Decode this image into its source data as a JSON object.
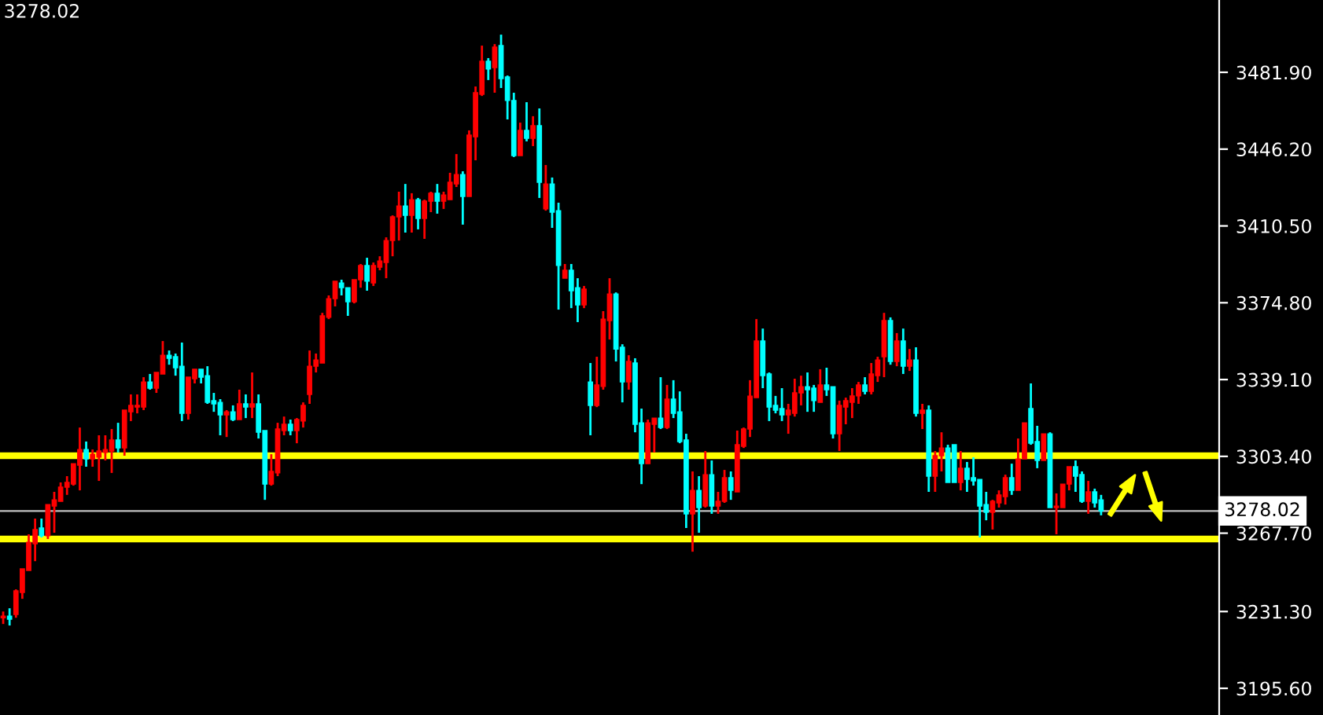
{
  "chart_data": {
    "type": "candlestick",
    "categories": [
      null,
      null,
      null,
      null,
      null,
      null,
      null,
      null,
      null,
      null,
      null,
      null,
      null,
      null,
      null,
      null,
      null,
      null,
      null,
      null,
      null,
      null,
      null,
      null,
      null,
      null,
      null,
      null,
      null,
      null,
      null,
      null,
      null,
      null,
      null,
      null,
      null,
      null,
      null,
      null,
      null,
      null,
      null,
      null,
      null,
      null,
      null,
      null,
      null,
      null,
      null,
      null,
      null,
      null,
      null,
      null,
      null,
      null,
      null,
      null,
      null,
      null,
      null,
      null,
      null,
      null,
      null,
      null,
      null,
      null,
      null,
      null,
      null,
      null,
      null,
      null,
      null,
      null,
      null,
      null,
      null,
      null,
      null,
      null,
      null,
      null,
      null,
      null,
      null,
      null,
      null,
      null,
      null,
      null,
      null,
      null,
      null,
      null,
      null,
      null,
      null,
      null,
      null,
      null,
      null,
      null,
      null,
      null,
      null,
      null,
      null,
      null,
      null,
      null,
      null,
      null,
      null,
      null,
      null,
      null,
      null,
      null,
      null,
      null,
      null,
      null,
      null,
      null,
      null,
      null,
      null,
      null,
      null,
      null,
      null,
      null,
      null,
      null,
      null,
      null,
      null,
      null,
      null,
      null,
      null,
      null,
      null,
      null,
      null,
      null,
      null,
      null,
      null,
      null,
      null,
      null,
      null,
      null,
      null,
      null,
      null,
      null,
      null,
      null,
      null,
      null,
      null,
      null,
      null,
      null,
      null,
      null,
      null,
      null,
      null,
      null,
      null,
      null,
      null,
      null,
      null,
      null,
      null,
      null,
      null,
      null,
      null,
      null,
      null,
      null,
      null
    ],
    "ohlc": [
      [
        3228.4,
        3231.3,
        3225.5,
        3229.1
      ],
      [
        3229.1,
        3232.8,
        3224.8,
        3227.7
      ],
      [
        3229.9,
        3241.6,
        3228.4,
        3240.9
      ],
      [
        3240.1,
        3251.1,
        3237.2,
        3251.1
      ],
      [
        3250.4,
        3267.2,
        3250.4,
        3263.5
      ],
      [
        3262.8,
        3274.5,
        3254.7,
        3269.4
      ],
      [
        3270.1,
        3274.5,
        3265.7,
        3266.5
      ],
      [
        3266.5,
        3281.0,
        3265.0,
        3281.0
      ],
      [
        3280.3,
        3286.9,
        3267.9,
        3283.2
      ],
      [
        3282.5,
        3291.3,
        3282.5,
        3289.1
      ],
      [
        3289.1,
        3294.2,
        3285.5,
        3291.3
      ],
      [
        3290.5,
        3300.0,
        3289.8,
        3300.0
      ],
      [
        3299.3,
        3316.8,
        3287.6,
        3306.6
      ],
      [
        3306.6,
        3310.3,
        3298.6,
        3302.2
      ],
      [
        3302.2,
        3306.6,
        3298.6,
        3304.4
      ],
      [
        3303.0,
        3313.2,
        3292.0,
        3305.9
      ],
      [
        3305.2,
        3313.2,
        3301.5,
        3306.6
      ],
      [
        3305.9,
        3316.1,
        3295.7,
        3311.0
      ],
      [
        3311.0,
        3319.0,
        3305.2,
        3307.3
      ],
      [
        3307.3,
        3324.9,
        3303.7,
        3324.9
      ],
      [
        3324.1,
        3332.2,
        3319.8,
        3327.1
      ],
      [
        3326.3,
        3332.2,
        3323.4,
        3327.1
      ],
      [
        3326.3,
        3340.2,
        3324.9,
        3338.0
      ],
      [
        3338.0,
        3341.7,
        3334.4,
        3335.1
      ],
      [
        3335.1,
        3342.4,
        3332.9,
        3342.4
      ],
      [
        3341.7,
        3357.0,
        3341.7,
        3350.4
      ],
      [
        3350.4,
        3352.6,
        3346.0,
        3349.0
      ],
      [
        3349.7,
        3351.2,
        3340.9,
        3344.6
      ],
      [
        3345.3,
        3356.3,
        3319.8,
        3323.4
      ],
      [
        3323.4,
        3340.2,
        3320.5,
        3340.2
      ],
      [
        3339.5,
        3343.9,
        3337.3,
        3343.9
      ],
      [
        3343.9,
        3343.9,
        3337.3,
        3340.2
      ],
      [
        3340.9,
        3345.3,
        3327.8,
        3328.5
      ],
      [
        3329.3,
        3332.9,
        3324.1,
        3327.8
      ],
      [
        3328.5,
        3330.0,
        3313.2,
        3322.7
      ],
      [
        3322.7,
        3324.9,
        3312.4,
        3324.1
      ],
      [
        3324.1,
        3327.1,
        3319.8,
        3320.5
      ],
      [
        3320.5,
        3334.4,
        3320.5,
        3327.8
      ],
      [
        3327.8,
        3332.2,
        3321.2,
        3326.3
      ],
      [
        3326.3,
        3342.4,
        3321.2,
        3327.8
      ],
      [
        3327.8,
        3332.2,
        3311.7,
        3314.6
      ],
      [
        3315.4,
        3315.4,
        3283.2,
        3290.5
      ],
      [
        3290.5,
        3304.4,
        3289.8,
        3296.4
      ],
      [
        3295.7,
        3319.0,
        3294.2,
        3316.1
      ],
      [
        3315.4,
        3321.9,
        3313.2,
        3318.3
      ],
      [
        3318.3,
        3320.5,
        3313.2,
        3315.4
      ],
      [
        3315.4,
        3321.2,
        3309.5,
        3320.5
      ],
      [
        3319.8,
        3328.5,
        3316.8,
        3327.1
      ],
      [
        3332.2,
        3352.6,
        3327.8,
        3345.3
      ],
      [
        3345.3,
        3351.2,
        3342.4,
        3348.2
      ],
      [
        3346.8,
        3370.1,
        3346.8,
        3368.7
      ],
      [
        3368.0,
        3378.2,
        3367.2,
        3376.7
      ],
      [
        3376.7,
        3384.8,
        3373.1,
        3384.8
      ],
      [
        3384.0,
        3385.5,
        3378.2,
        3381.8
      ],
      [
        3381.8,
        3381.8,
        3368.7,
        3375.3
      ],
      [
        3375.3,
        3385.5,
        3374.5,
        3385.5
      ],
      [
        3385.5,
        3392.8,
        3381.8,
        3392.1
      ],
      [
        3392.1,
        3395.7,
        3380.4,
        3384.8
      ],
      [
        3384.0,
        3393.5,
        3382.6,
        3392.1
      ],
      [
        3391.3,
        3396.4,
        3389.9,
        3394.2
      ],
      [
        3393.5,
        3405.2,
        3386.2,
        3403.7
      ],
      [
        3403.7,
        3415.4,
        3396.4,
        3414.7
      ],
      [
        3414.7,
        3426.4,
        3403.7,
        3419.8
      ],
      [
        3419.8,
        3430.0,
        3407.4,
        3415.4
      ],
      [
        3415.4,
        3425.7,
        3407.4,
        3422.7
      ],
      [
        3422.7,
        3423.5,
        3408.9,
        3414.0
      ],
      [
        3414.0,
        3422.7,
        3404.5,
        3422.0
      ],
      [
        3422.0,
        3426.4,
        3416.9,
        3425.7
      ],
      [
        3425.7,
        3430.0,
        3416.2,
        3422.0
      ],
      [
        3422.0,
        3426.4,
        3418.4,
        3424.9
      ],
      [
        3422.7,
        3435.2,
        3422.7,
        3430.8
      ],
      [
        3430.0,
        3443.9,
        3428.6,
        3434.4
      ],
      [
        3434.4,
        3435.9,
        3411.1,
        3424.2
      ],
      [
        3424.2,
        3454.9,
        3424.2,
        3452.7
      ],
      [
        3451.9,
        3475.3,
        3441.0,
        3472.4
      ],
      [
        3471.7,
        3494.3,
        3470.9,
        3487.0
      ],
      [
        3487.0,
        3488.5,
        3478.3,
        3483.4
      ],
      [
        3484.1,
        3495.0,
        3472.4,
        3493.6
      ],
      [
        3494.3,
        3499.4,
        3474.6,
        3479.0
      ],
      [
        3479.7,
        3480.4,
        3460.0,
        3468.8
      ],
      [
        3468.8,
        3472.4,
        3442.5,
        3443.2
      ],
      [
        3443.2,
        3458.5,
        3443.2,
        3454.9
      ],
      [
        3454.9,
        3468.0,
        3449.8,
        3451.2
      ],
      [
        3451.2,
        3461.5,
        3447.6,
        3457.1
      ],
      [
        3457.1,
        3465.1,
        3423.5,
        3430.8
      ],
      [
        3418.4,
        3438.8,
        3417.6,
        3430.0
      ],
      [
        3430.0,
        3433.0,
        3409.6,
        3416.9
      ],
      [
        3417.6,
        3421.3,
        3371.6,
        3392.1
      ],
      [
        3386.2,
        3392.8,
        3386.2,
        3389.9
      ],
      [
        3389.9,
        3392.8,
        3372.3,
        3380.4
      ],
      [
        3381.8,
        3386.2,
        3365.8,
        3373.8
      ],
      [
        3373.8,
        3382.6,
        3372.3,
        3381.1
      ],
      [
        3338.0,
        3346.8,
        3313.2,
        3327.1
      ],
      [
        3327.1,
        3349.7,
        3326.3,
        3336.6
      ],
      [
        3335.9,
        3370.9,
        3334.4,
        3367.2
      ],
      [
        3366.5,
        3386.2,
        3357.7,
        3378.9
      ],
      [
        3378.9,
        3379.6,
        3347.5,
        3353.3
      ],
      [
        3354.1,
        3355.5,
        3328.5,
        3338.0
      ],
      [
        3338.0,
        3350.4,
        3334.4,
        3347.5
      ],
      [
        3346.8,
        3349.0,
        3314.6,
        3318.3
      ],
      [
        3319.0,
        3325.6,
        3290.5,
        3300.0
      ],
      [
        3300.0,
        3320.5,
        3300.0,
        3319.0
      ],
      [
        3318.3,
        3321.2,
        3305.2,
        3321.2
      ],
      [
        3321.2,
        3340.2,
        3316.1,
        3316.8
      ],
      [
        3316.8,
        3336.6,
        3316.1,
        3330.0
      ],
      [
        3330.0,
        3338.8,
        3321.2,
        3323.4
      ],
      [
        3324.1,
        3333.6,
        3309.5,
        3310.3
      ],
      [
        3311.0,
        3313.9,
        3270.1,
        3276.7
      ],
      [
        3276.7,
        3296.4,
        3259.1,
        3287.6
      ],
      [
        3287.6,
        3294.2,
        3267.9,
        3279.6
      ],
      [
        3280.3,
        3305.9,
        3279.6,
        3294.9
      ],
      [
        3294.9,
        3301.5,
        3276.7,
        3280.3
      ],
      [
        3280.3,
        3286.9,
        3276.7,
        3282.5
      ],
      [
        3282.5,
        3297.1,
        3281.8,
        3293.5
      ],
      [
        3293.5,
        3296.4,
        3283.2,
        3287.6
      ],
      [
        3286.9,
        3315.4,
        3286.9,
        3308.8
      ],
      [
        3308.1,
        3316.8,
        3307.3,
        3316.1
      ],
      [
        3316.1,
        3338.8,
        3312.4,
        3331.4
      ],
      [
        3330.7,
        3367.2,
        3330.7,
        3357.0
      ],
      [
        3357.0,
        3362.8,
        3335.1,
        3340.9
      ],
      [
        3341.7,
        3342.4,
        3319.8,
        3326.3
      ],
      [
        3327.1,
        3331.5,
        3323.4,
        3324.9
      ],
      [
        3325.6,
        3335.1,
        3319.8,
        3322.7
      ],
      [
        3322.7,
        3327.8,
        3313.9,
        3324.9
      ],
      [
        3323.4,
        3339.5,
        3321.9,
        3332.9
      ],
      [
        3332.9,
        3340.9,
        3327.1,
        3335.8
      ],
      [
        3335.8,
        3342.4,
        3324.1,
        3334.4
      ],
      [
        3335.1,
        3336.6,
        3324.1,
        3329.3
      ],
      [
        3328.5,
        3343.9,
        3328.5,
        3336.6
      ],
      [
        3336.6,
        3344.6,
        3331.5,
        3334.4
      ],
      [
        3335.8,
        3335.8,
        3311.7,
        3313.9
      ],
      [
        3313.9,
        3329.3,
        3305.9,
        3327.1
      ],
      [
        3326.3,
        3330.7,
        3318.3,
        3329.3
      ],
      [
        3328.5,
        3335.1,
        3321.2,
        3331.5
      ],
      [
        3331.5,
        3338.0,
        3327.8,
        3336.6
      ],
      [
        3336.6,
        3340.2,
        3332.2,
        3333.6
      ],
      [
        3333.6,
        3346.8,
        3332.2,
        3341.7
      ],
      [
        3340.9,
        3349.7,
        3338.0,
        3348.2
      ],
      [
        3349.7,
        3370.1,
        3340.2,
        3366.5
      ],
      [
        3366.5,
        3368.0,
        3346.0,
        3347.5
      ],
      [
        3347.5,
        3360.7,
        3345.3,
        3357.0
      ],
      [
        3357.0,
        3362.8,
        3341.7,
        3345.3
      ],
      [
        3345.3,
        3353.3,
        3343.1,
        3348.2
      ],
      [
        3348.2,
        3354.1,
        3321.9,
        3323.4
      ],
      [
        3323.4,
        3327.8,
        3316.1,
        3324.9
      ],
      [
        3324.9,
        3327.1,
        3286.9,
        3294.2
      ],
      [
        3294.2,
        3305.9,
        3286.9,
        3303.7
      ],
      [
        3303.7,
        3314.6,
        3296.4,
        3307.3
      ],
      [
        3307.3,
        3308.8,
        3291.3,
        3291.3
      ],
      [
        3308.8,
        3308.8,
        3291.3,
        3291.3
      ],
      [
        3291.3,
        3305.9,
        3287.6,
        3297.9
      ],
      [
        3297.9,
        3300.8,
        3286.9,
        3292.7
      ],
      [
        3293.5,
        3303.0,
        3289.8,
        3292.0
      ],
      [
        3292.7,
        3292.7,
        3265.7,
        3280.3
      ],
      [
        3281.0,
        3286.9,
        3273.7,
        3277.4
      ],
      [
        3277.4,
        3283.2,
        3269.4,
        3282.5
      ],
      [
        3281.8,
        3287.6,
        3279.6,
        3285.5
      ],
      [
        3284.7,
        3294.9,
        3281.0,
        3293.5
      ],
      [
        3293.5,
        3300.0,
        3285.5,
        3287.6
      ],
      [
        3287.6,
        3311.7,
        3287.6,
        3302.2
      ],
      [
        3302.2,
        3319.0,
        3302.2,
        3319.0
      ],
      [
        3325.6,
        3337.3,
        3308.8,
        3309.5
      ],
      [
        3310.3,
        3317.6,
        3297.9,
        3301.5
      ],
      [
        3301.5,
        3313.9,
        3301.5,
        3313.9
      ],
      [
        3313.9,
        3314.6,
        3279.6,
        3279.6
      ],
      [
        3279.6,
        3286.2,
        3267.2,
        3280.3
      ],
      [
        3279.6,
        3290.5,
        3279.6,
        3290.5
      ],
      [
        3290.5,
        3298.6,
        3287.6,
        3298.6
      ],
      [
        3298.6,
        3301.5,
        3286.9,
        3294.2
      ],
      [
        3295.0,
        3296.4,
        3281.8,
        3282.5
      ],
      [
        3282.5,
        3292.0,
        3276.7,
        3286.9
      ],
      [
        3286.9,
        3288.4,
        3279.6,
        3281.8
      ],
      [
        3283.2,
        3285.5,
        3276.0,
        3278.0
      ],
      null,
      null,
      null,
      null,
      null,
      null,
      null,
      null,
      null,
      null,
      null,
      null,
      null,
      null,
      null,
      null,
      null,
      null
    ],
    "colors": [
      "#ff0000",
      "#00ffff",
      "#ff0000",
      "#ff0000",
      "#ff0000",
      "#ff0000",
      "#00ffff",
      "#ff0000",
      "#ff0000",
      "#ff0000",
      "#ff0000",
      "#ff0000",
      "#ff0000",
      "#00ffff",
      "#ff0000",
      "#ff0000",
      "#ff0000",
      "#ff0000",
      "#00ffff",
      "#ff0000",
      "#ff0000",
      "#ff0000",
      "#ff0000",
      "#00ffff",
      "#ff0000",
      "#ff0000",
      "#00ffff",
      "#00ffff",
      "#00ffff",
      "#ff0000",
      "#ff0000",
      "#00ffff",
      "#00ffff",
      "#00ffff",
      "#00ffff",
      "#ff0000",
      "#00ffff",
      "#ff0000",
      "#00ffff",
      "#ff0000",
      "#00ffff",
      "#00ffff",
      "#ff0000",
      "#ff0000",
      "#ff0000",
      "#00ffff",
      "#ff0000",
      "#ff0000",
      "#ff0000",
      "#ff0000",
      "#ff0000",
      "#ff0000",
      "#ff0000",
      "#00ffff",
      "#00ffff",
      "#ff0000",
      "#ff0000",
      "#00ffff",
      "#ff0000",
      "#ff0000",
      "#ff0000",
      "#ff0000",
      "#ff0000",
      "#00ffff",
      "#ff0000",
      "#00ffff",
      "#ff0000",
      "#ff0000",
      "#00ffff",
      "#ff0000",
      "#ff0000",
      "#ff0000",
      "#00ffff",
      "#ff0000",
      "#ff0000",
      "#ff0000",
      "#00ffff",
      "#ff0000",
      "#00ffff",
      "#00ffff",
      "#00ffff",
      "#ff0000",
      "#00ffff",
      "#ff0000",
      "#00ffff",
      "#ff0000",
      "#00ffff",
      "#00ffff",
      "#ff0000",
      "#00ffff",
      "#00ffff",
      "#ff0000",
      "#00ffff",
      "#ff0000",
      "#ff0000",
      "#ff0000",
      "#00ffff",
      "#00ffff",
      "#ff0000",
      "#00ffff",
      "#00ffff",
      "#ff0000",
      "#ff0000",
      "#00ffff",
      "#ff0000",
      "#00ffff",
      "#00ffff",
      "#00ffff",
      "#ff0000",
      "#00ffff",
      "#ff0000",
      "#00ffff",
      "#ff0000",
      "#ff0000",
      "#00ffff",
      "#ff0000",
      "#ff0000",
      "#ff0000",
      "#ff0000",
      "#00ffff",
      "#00ffff",
      "#00ffff",
      "#00ffff",
      "#ff0000",
      "#ff0000",
      "#ff0000",
      "#00ffff",
      "#00ffff",
      "#ff0000",
      "#00ffff",
      "#00ffff",
      "#ff0000",
      "#ff0000",
      "#ff0000",
      "#ff0000",
      "#00ffff",
      "#ff0000",
      "#ff0000",
      "#ff0000",
      "#00ffff",
      "#ff0000",
      "#00ffff",
      "#ff0000",
      "#00ffff",
      "#ff0000",
      "#00ffff",
      "#ff0000",
      "#ff0000",
      "#00ffff",
      "#00ffff",
      "#ff0000",
      "#00ffff",
      "#00ffff",
      "#00ffff",
      "#00ffff",
      "#ff0000",
      "#ff0000",
      "#ff0000",
      "#00ffff",
      "#ff0000",
      "#ff0000",
      "#00ffff",
      "#00ffff",
      "#ff0000",
      "#00ffff",
      "#ff0000",
      "#ff0000",
      "#ff0000",
      "#00ffff",
      "#00ffff",
      "#ff0000",
      "#00ffff",
      "#00ffff",
      null,
      null,
      null,
      null,
      null,
      null,
      null,
      null,
      null,
      null,
      null,
      null,
      null,
      null,
      null,
      null,
      null,
      null
    ],
    "ylim": [
      3183.2,
      3515.5
    ],
    "yticks": [
      {
        "value": 3195.6,
        "label": "3195.60"
      },
      {
        "value": 3231.3,
        "label": "3231.30"
      },
      {
        "value": 3267.7,
        "label": "3267.70"
      },
      {
        "value": 3303.4,
        "label": "3303.40"
      },
      {
        "value": 3339.1,
        "label": "3339.10"
      },
      {
        "value": 3374.8,
        "label": "3374.80"
      },
      {
        "value": 3410.5,
        "label": "3410.50"
      },
      {
        "value": 3446.2,
        "label": "3446.20"
      },
      {
        "value": 3481.9,
        "label": "3481.90"
      }
    ],
    "tick_labels": "y",
    "ref_lines": [
      {
        "axis": "y",
        "value": 3278.02,
        "label": "3278.02",
        "color": "#c0c0c0"
      },
      {
        "axis": "y",
        "value": 3303.7,
        "color": "#ffff00"
      },
      {
        "axis": "y",
        "value": 3265.0,
        "color": "#ffff00"
      }
    ],
    "annotations": [
      "3278.02"
    ]
  }
}
